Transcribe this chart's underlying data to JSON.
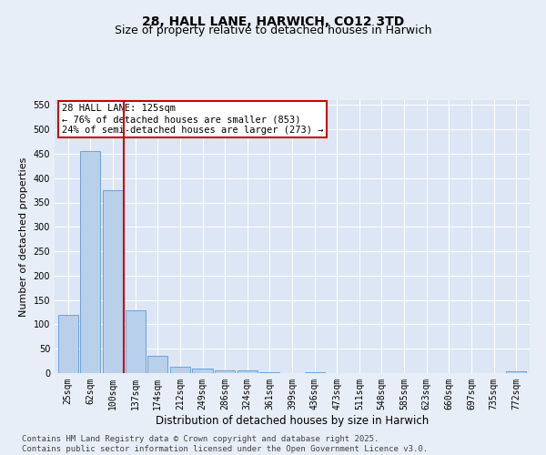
{
  "title": "28, HALL LANE, HARWICH, CO12 3TD",
  "subtitle": "Size of property relative to detached houses in Harwich",
  "xlabel": "Distribution of detached houses by size in Harwich",
  "ylabel": "Number of detached properties",
  "categories": [
    "25sqm",
    "62sqm",
    "100sqm",
    "137sqm",
    "174sqm",
    "212sqm",
    "249sqm",
    "286sqm",
    "324sqm",
    "361sqm",
    "399sqm",
    "436sqm",
    "473sqm",
    "511sqm",
    "548sqm",
    "585sqm",
    "623sqm",
    "660sqm",
    "697sqm",
    "735sqm",
    "772sqm"
  ],
  "values": [
    120,
    455,
    375,
    128,
    35,
    14,
    9,
    5,
    6,
    1,
    0,
    1,
    0,
    0,
    0,
    0,
    0,
    0,
    0,
    0,
    4
  ],
  "bar_color": "#b8d0ea",
  "bar_edge_color": "#5b9bd5",
  "vline_x": 2.5,
  "vline_color": "#cc0000",
  "annotation_title": "28 HALL LANE: 125sqm",
  "annotation_line2": "← 76% of detached houses are smaller (853)",
  "annotation_line3": "24% of semi-detached houses are larger (273) →",
  "annotation_box_color": "#cc0000",
  "annotation_bg": "#ffffff",
  "ylim": [
    0,
    560
  ],
  "yticks": [
    0,
    50,
    100,
    150,
    200,
    250,
    300,
    350,
    400,
    450,
    500,
    550
  ],
  "background_color": "#dce6f5",
  "fig_background_color": "#e8eef7",
  "grid_color": "#ffffff",
  "footer": "Contains HM Land Registry data © Crown copyright and database right 2025.\nContains public sector information licensed under the Open Government Licence v3.0.",
  "title_fontsize": 10,
  "subtitle_fontsize": 9,
  "xlabel_fontsize": 8.5,
  "ylabel_fontsize": 8,
  "tick_fontsize": 7,
  "footer_fontsize": 6.5,
  "ann_fontsize": 7.5
}
